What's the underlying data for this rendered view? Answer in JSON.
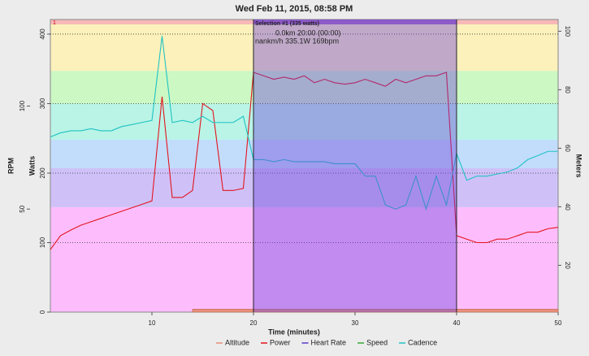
{
  "chart_data": {
    "type": "line",
    "title": "Wed Feb 11, 2015, 08:58 PM",
    "x_label": "Time (minutes)",
    "y_label": "Watts",
    "y_rpm_label": "RPM",
    "y2_label": "Meters",
    "x": [
      0,
      1,
      2,
      3,
      4,
      5,
      6,
      7,
      8,
      9,
      10,
      11,
      12,
      13,
      14,
      15,
      16,
      17,
      18,
      19,
      20,
      21,
      22,
      23,
      24,
      25,
      26,
      27,
      28,
      29,
      30,
      31,
      32,
      33,
      34,
      35,
      36,
      37,
      38,
      39,
      40,
      41,
      42,
      43,
      44,
      45,
      46,
      47,
      48,
      49,
      50
    ],
    "xlim": [
      0,
      50
    ],
    "xticks": [
      10,
      20,
      30,
      40,
      50
    ],
    "ylim": [
      0,
      421
    ],
    "yticks": [
      0,
      100,
      200,
      300,
      400
    ],
    "y_rpm_lim": [
      0,
      142
    ],
    "y_rpm_ticks": [
      50,
      100
    ],
    "y2lim": [
      4,
      104
    ],
    "y2ticks": [
      20,
      40,
      60,
      80,
      100
    ],
    "grid": true,
    "legend": "bottom",
    "zones": [
      {
        "low": 0,
        "high": 151,
        "color": "#fdbdfd"
      },
      {
        "low": 151,
        "high": 207,
        "color": "#cfc1f8"
      },
      {
        "low": 207,
        "high": 248,
        "color": "#c2ddfc"
      },
      {
        "low": 248,
        "high": 300,
        "color": "#b9f4e6"
      },
      {
        "low": 300,
        "high": 347,
        "color": "#cbf8c3"
      },
      {
        "low": 347,
        "high": 414,
        "color": "#fcf1ba"
      },
      {
        "low": 414,
        "high": 421,
        "color": "#f8b8b8"
      }
    ],
    "zone_label": "1",
    "selection": {
      "label": "Selection #1 (335 watts)",
      "start": 20,
      "end": 40,
      "info": [
        "0.0km 20:00 (00:00)",
        "nankm/h 335.1W 169bpm"
      ]
    },
    "series": [
      {
        "name": "Altitude",
        "color": "#e8907a",
        "axis": "y2",
        "values": [
          null,
          null,
          null,
          null,
          null,
          null,
          null,
          null,
          null,
          null,
          null,
          null,
          null,
          null,
          5,
          5,
          5,
          5,
          5,
          5,
          5,
          5,
          5,
          5,
          5,
          5,
          5,
          5,
          5,
          5,
          5,
          5,
          5,
          5,
          5,
          5,
          5,
          5,
          5,
          5,
          5,
          5,
          5,
          5,
          5,
          5,
          5,
          5,
          5,
          5,
          5
        ]
      },
      {
        "name": "Power",
        "color": "#e3141e",
        "axis": "y",
        "values": [
          90,
          110,
          118,
          125,
          130,
          135,
          140,
          145,
          150,
          155,
          160,
          310,
          165,
          165,
          175,
          300,
          290,
          175,
          175,
          178,
          345,
          340,
          335,
          338,
          335,
          340,
          330,
          335,
          330,
          328,
          330,
          335,
          330,
          325,
          335,
          330,
          335,
          340,
          340,
          345,
          110,
          105,
          100,
          100,
          105,
          105,
          110,
          115,
          115,
          120,
          122
        ]
      },
      {
        "name": "Heart Rate",
        "color": "#5a3cc8",
        "axis": "y",
        "values": [
          null,
          null,
          null,
          null,
          null,
          null,
          null,
          null,
          null,
          null,
          null,
          null,
          null,
          null,
          null,
          null,
          null,
          null,
          null,
          null,
          null,
          null,
          null,
          null,
          null,
          null,
          null,
          null,
          null,
          null,
          null,
          null,
          null,
          null,
          null,
          null,
          null,
          null,
          null,
          null,
          null,
          null,
          null,
          null,
          null,
          null,
          null,
          null,
          null,
          null,
          null
        ]
      },
      {
        "name": "Speed",
        "color": "#3aa83a",
        "axis": "y",
        "values": [
          null,
          null,
          null,
          null,
          null,
          null,
          null,
          null,
          null,
          null,
          null,
          null,
          null,
          null,
          null,
          null,
          null,
          null,
          null,
          null,
          null,
          null,
          null,
          null,
          null,
          null,
          null,
          null,
          null,
          null,
          null,
          null,
          null,
          null,
          null,
          null,
          null,
          null,
          null,
          null,
          null,
          null,
          null,
          null,
          null,
          null,
          null,
          null,
          null,
          null,
          null
        ]
      },
      {
        "name": "Cadence",
        "color": "#1fc3c3",
        "axis": "rpm",
        "values": [
          85,
          87,
          88,
          88,
          89,
          88,
          88,
          90,
          91,
          92,
          93,
          134,
          92,
          93,
          92,
          95,
          92,
          92,
          92,
          95,
          74,
          74,
          73,
          74,
          73,
          73,
          73,
          73,
          72,
          72,
          72,
          66,
          66,
          52,
          50,
          52,
          66,
          50,
          66,
          52,
          77,
          64,
          66,
          66,
          67,
          68,
          70,
          74,
          76,
          78,
          78
        ]
      }
    ]
  }
}
